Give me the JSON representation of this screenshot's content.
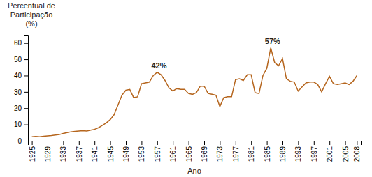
{
  "chart_data": {
    "type": "line",
    "x": [
      1925,
      1926,
      1927,
      1928,
      1929,
      1930,
      1931,
      1932,
      1933,
      1934,
      1935,
      1936,
      1937,
      1938,
      1939,
      1940,
      1941,
      1942,
      1943,
      1944,
      1945,
      1946,
      1947,
      1948,
      1949,
      1950,
      1951,
      1952,
      1953,
      1954,
      1955,
      1956,
      1957,
      1958,
      1959,
      1960,
      1961,
      1962,
      1963,
      1964,
      1965,
      1966,
      1967,
      1968,
      1969,
      1970,
      1971,
      1972,
      1973,
      1974,
      1975,
      1976,
      1977,
      1978,
      1979,
      1980,
      1981,
      1982,
      1983,
      1984,
      1985,
      1986,
      1987,
      1988,
      1989,
      1990,
      1991,
      1992,
      1993,
      1994,
      1995,
      1996,
      1997,
      1998,
      1999,
      2000,
      2001,
      2002,
      2003,
      2004,
      2005,
      2006,
      2007,
      2008
    ],
    "values": [
      2.5,
      2.7,
      2.5,
      2.8,
      3.0,
      3.2,
      3.5,
      3.8,
      4.5,
      5.0,
      5.5,
      5.8,
      6.0,
      6.2,
      6.0,
      6.5,
      7.0,
      8.0,
      9.5,
      11.0,
      13.0,
      16.0,
      22.0,
      28.0,
      31.0,
      31.5,
      26.5,
      27.0,
      35.0,
      35.5,
      36.0,
      40.0,
      42.0,
      40.5,
      37.0,
      32.5,
      30.5,
      32.0,
      31.5,
      31.5,
      29.0,
      28.5,
      29.5,
      33.5,
      33.5,
      29.0,
      28.5,
      28.0,
      21.0,
      26.5,
      27.0,
      27.0,
      37.5,
      38.0,
      37.0,
      40.5,
      40.5,
      29.5,
      29.0,
      40.0,
      44.5,
      57.0,
      48.0,
      46.0,
      50.5,
      38.0,
      36.5,
      36.0,
      30.5,
      33.0,
      35.5,
      36.0,
      36.0,
      34.5,
      30.0,
      35.0,
      39.5,
      35.0,
      34.5,
      35.0,
      35.5,
      34.5,
      36.5,
      40.0
    ],
    "color": "#b5651d",
    "xlabel": "Ano",
    "ylabel": [
      "Percentual de",
      "Participação",
      "(%)"
    ],
    "xlim": [
      1924,
      2009
    ],
    "xticks": [
      1925,
      1929,
      1933,
      1937,
      1941,
      1945,
      1949,
      1953,
      1957,
      1961,
      1965,
      1969,
      1973,
      1977,
      1981,
      1985,
      1989,
      1993,
      1997,
      2001,
      2005,
      2008
    ],
    "ylim": [
      0,
      65
    ],
    "yticks": [
      0,
      10,
      20,
      30,
      40,
      50,
      60
    ],
    "annotations": [
      {
        "text": "42%",
        "x": 1955.5,
        "y": 44.5
      },
      {
        "text": "57%",
        "x": 1984.5,
        "y": 59.5
      }
    ],
    "grid": false
  }
}
